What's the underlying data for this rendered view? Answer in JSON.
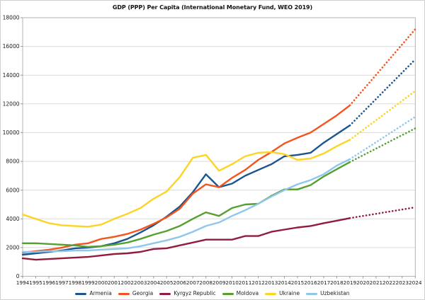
{
  "chart_data": {
    "type": "line",
    "title": "GDP (PPP) Per Capita (International Monetary Fund, WEO 2019)",
    "x": [
      1994,
      1995,
      1996,
      1997,
      1998,
      1999,
      2000,
      2001,
      2002,
      2003,
      2004,
      2005,
      2006,
      2007,
      2008,
      2009,
      2010,
      2011,
      2012,
      2013,
      2014,
      2015,
      2016,
      2017,
      2018,
      2019,
      2020,
      2021,
      2022,
      2023,
      2024
    ],
    "x_tick_labels": [
      "1994",
      "1995",
      "1996",
      "1997",
      "1998",
      "1999",
      "2000",
      "2001",
      "2002",
      "2003",
      "2004",
      "2005",
      "2006",
      "2007",
      "2008",
      "2009",
      "2010",
      "2011",
      "2012",
      "2013",
      "2014",
      "2015",
      "2016",
      "2017",
      "2018",
      "2019",
      "2020",
      "2021",
      "2022",
      "2023",
      "2024"
    ],
    "y_ticks": [
      0,
      2000,
      4000,
      6000,
      8000,
      10000,
      12000,
      14000,
      16000,
      18000
    ],
    "ylim": [
      0,
      18000
    ],
    "grid": "horizontal",
    "legend_position": "bottom",
    "forecast_dotted_from": 2019,
    "colors": {
      "plot_border": "#b3b3b3",
      "gridline": "#dadada",
      "axis_tick": "#999999",
      "background": "#ffffff"
    },
    "series": [
      {
        "name": "Armenia",
        "color": "#1a5592",
        "values": [
          1500,
          1600,
          1700,
          1800,
          1950,
          2000,
          2100,
          2300,
          2600,
          3050,
          3550,
          4150,
          4850,
          5850,
          7100,
          6200,
          6450,
          7000,
          7400,
          7800,
          8350,
          8450,
          8600,
          9300,
          9900,
          10500,
          11420,
          12340,
          13260,
          14180,
          15100
        ]
      },
      {
        "name": "Georgia",
        "color": "#f4541d",
        "values": [
          1650,
          1750,
          1850,
          2000,
          2200,
          2300,
          2600,
          2750,
          2950,
          3250,
          3650,
          4100,
          4700,
          5750,
          6400,
          6200,
          6850,
          7400,
          8100,
          8650,
          9250,
          9650,
          10000,
          10600,
          11200,
          11900,
          12960,
          14020,
          15080,
          16140,
          17200
        ]
      },
      {
        "name": "Kyrgyz Republic",
        "color": "#911d3e",
        "values": [
          1250,
          1150,
          1200,
          1250,
          1300,
          1350,
          1450,
          1550,
          1600,
          1700,
          1900,
          1950,
          2150,
          2350,
          2550,
          2550,
          2550,
          2800,
          2800,
          3100,
          3250,
          3400,
          3500,
          3700,
          3870,
          4050,
          4200,
          4350,
          4500,
          4650,
          4800
        ]
      },
      {
        "name": "Moldova",
        "color": "#55a02e",
        "values": [
          2300,
          2300,
          2250,
          2200,
          2150,
          2050,
          2100,
          2200,
          2350,
          2600,
          2900,
          3150,
          3500,
          4000,
          4450,
          4200,
          4750,
          5000,
          5050,
          5600,
          6050,
          6050,
          6350,
          6950,
          7450,
          7950,
          8420,
          8890,
          9360,
          9830,
          10300
        ]
      },
      {
        "name": "Ukraine",
        "color": "#fdd324",
        "values": [
          4300,
          4000,
          3700,
          3550,
          3500,
          3450,
          3600,
          4000,
          4350,
          4750,
          5400,
          5900,
          6900,
          8250,
          8450,
          7350,
          7800,
          8350,
          8600,
          8650,
          8500,
          8100,
          8200,
          8550,
          9050,
          9500,
          10180,
          10860,
          11540,
          12220,
          12900
        ]
      },
      {
        "name": "Uzbekistan",
        "color": "#8ec6ee",
        "values": [
          1700,
          1700,
          1750,
          1750,
          1800,
          1800,
          1850,
          1900,
          1950,
          2100,
          2300,
          2500,
          2750,
          3100,
          3500,
          3750,
          4200,
          4600,
          5050,
          5550,
          6000,
          6400,
          6700,
          7100,
          7700,
          8150,
          8740,
          9330,
          9920,
          10510,
          11100
        ]
      }
    ]
  }
}
